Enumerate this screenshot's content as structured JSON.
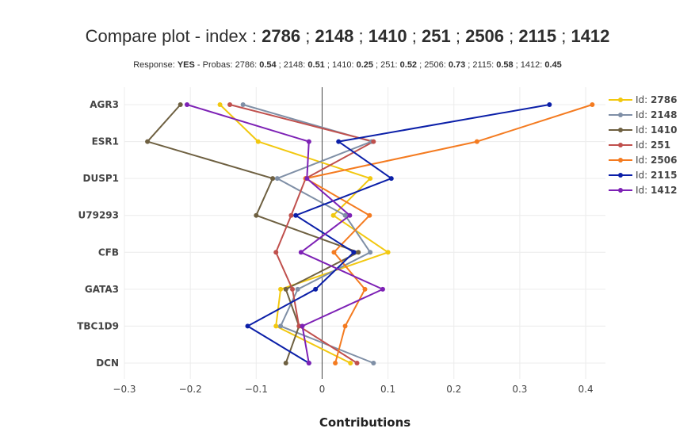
{
  "header": {
    "title_prefix": "Compare plot - index : ",
    "title_ids": [
      "2786",
      "2148",
      "1410",
      "251",
      "2506",
      "2115",
      "1412"
    ],
    "title_separator": " ; ",
    "subtitle_prefix": "Response: ",
    "subtitle_response": "YES",
    "subtitle_probas_label": " - Probas: ",
    "subtitle_probas": [
      {
        "id": "2786",
        "value": "0.54"
      },
      {
        "id": "2148",
        "value": "0.51"
      },
      {
        "id": "1410",
        "value": "0.25"
      },
      {
        "id": "251",
        "value": "0.52"
      },
      {
        "id": "2506",
        "value": "0.73"
      },
      {
        "id": "2115",
        "value": "0.58"
      },
      {
        "id": "1412",
        "value": "0.45"
      }
    ]
  },
  "chart_data": {
    "type": "line",
    "title": "",
    "xlabel": "Contributions",
    "ylabel": "",
    "xlim": [
      -0.3,
      0.43
    ],
    "xticks": [
      -0.3,
      -0.2,
      -0.1,
      0,
      0.1,
      0.2,
      0.3,
      0.4
    ],
    "xtick_labels": [
      "−0.3",
      "−0.2",
      "−0.1",
      "0",
      "0.1",
      "0.2",
      "0.3",
      "0.4"
    ],
    "categories": [
      "AGR3",
      "ESR1",
      "DUSP1",
      "U79293",
      "CFB",
      "GATA3",
      "TBC1D9",
      "DCN"
    ],
    "grid": true,
    "legend_position": "top-right",
    "legend_prefix": "Id: ",
    "series": [
      {
        "name": "2786",
        "color": "#f2c80f",
        "values": [
          -0.155,
          -0.097,
          0.073,
          0.017,
          0.1,
          -0.063,
          -0.07,
          0.043
        ]
      },
      {
        "name": "2148",
        "color": "#7f8fa6",
        "values": [
          -0.12,
          0.075,
          -0.068,
          0.035,
          0.073,
          -0.037,
          -0.063,
          0.078
        ]
      },
      {
        "name": "1410",
        "color": "#6e6041",
        "values": [
          -0.215,
          -0.265,
          -0.075,
          -0.1,
          0.055,
          -0.055,
          -0.035,
          -0.055
        ]
      },
      {
        "name": "251",
        "color": "#c0504d",
        "values": [
          -0.14,
          0.078,
          -0.025,
          -0.047,
          -0.07,
          -0.045,
          -0.035,
          0.053
        ]
      },
      {
        "name": "2506",
        "color": "#f47b20",
        "values": [
          0.41,
          0.235,
          -0.025,
          0.072,
          0.018,
          0.065,
          0.035,
          0.02
        ]
      },
      {
        "name": "2115",
        "color": "#0b1fa8",
        "values": [
          0.345,
          0.025,
          0.105,
          -0.04,
          0.048,
          -0.01,
          -0.113,
          -0.02
        ]
      },
      {
        "name": "1412",
        "color": "#7d21b5",
        "values": [
          -0.205,
          -0.02,
          -0.023,
          0.042,
          -0.032,
          0.092,
          -0.03,
          -0.02
        ]
      }
    ]
  }
}
